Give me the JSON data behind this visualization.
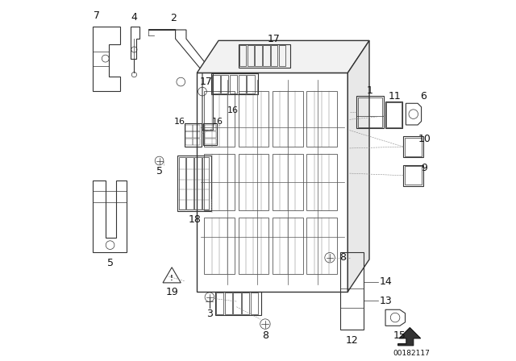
{
  "background_color": "#ffffff",
  "image_number": "00182117",
  "line_color": "#333333",
  "label_fontsize": 9,
  "gray_fill": "#e8e8e8",
  "light_fill": "#f2f2f2"
}
